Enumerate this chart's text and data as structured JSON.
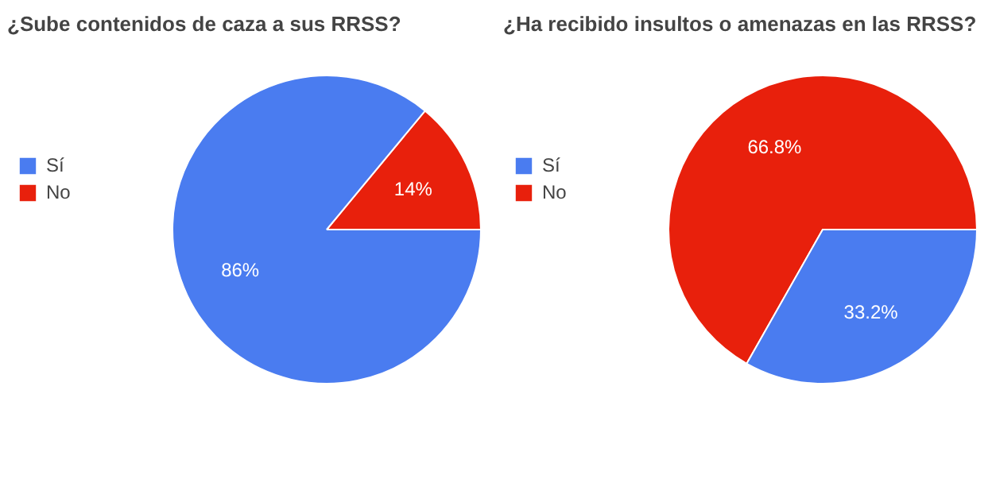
{
  "chart_data": [
    {
      "type": "pie",
      "title": "¿Sube contenidos de caza a sus RRSS?",
      "categories": [
        "Sí",
        "No"
      ],
      "values": [
        86,
        14
      ],
      "value_labels": [
        "86%",
        "14%"
      ],
      "colors": [
        "#4a7cf0",
        "#e8200c"
      ],
      "legend": "left"
    },
    {
      "type": "pie",
      "title": "¿Ha recibido insultos o amenazas en las RRSS?",
      "categories": [
        "Sí",
        "No"
      ],
      "values": [
        33.2,
        66.8
      ],
      "value_labels": [
        "33.2%",
        "66.8%"
      ],
      "colors": [
        "#4a7cf0",
        "#e8200c"
      ],
      "legend": "left"
    }
  ]
}
